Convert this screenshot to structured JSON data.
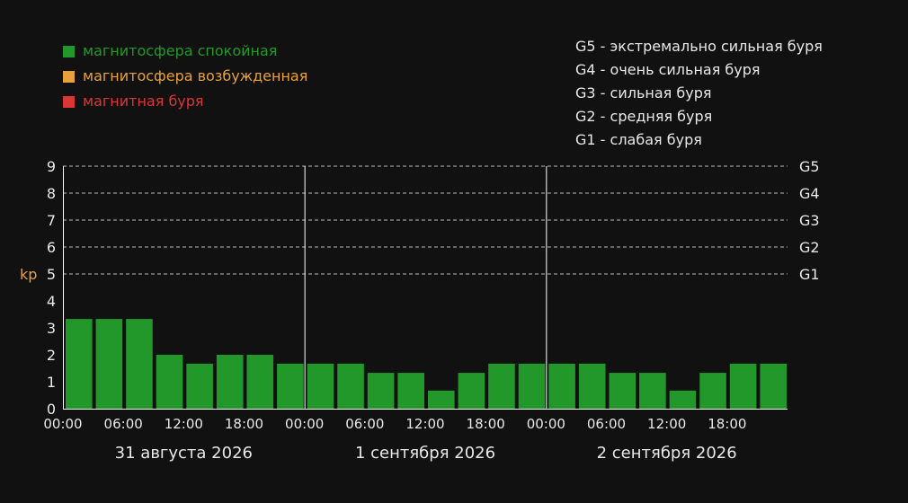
{
  "legend": [
    {
      "label": "магнитосфера спокойная",
      "color": "#23982a"
    },
    {
      "label": "магнитосфера возбужденная",
      "color": "#e8a13a"
    },
    {
      "label": "магнитная буря",
      "color": "#d93636"
    }
  ],
  "storm_levels": [
    {
      "text": "G5 - экстремально сильная буря"
    },
    {
      "text": "G4 - очень сильная буря"
    },
    {
      "text": "G3 - сильная буря"
    },
    {
      "text": "G2 - средняя буря"
    },
    {
      "text": "G1 - слабая буря"
    }
  ],
  "colors": {
    "background": "#111111",
    "calm": "#23982a",
    "axis": "#ffffff",
    "grid": "#bbbbbb",
    "ylabel": "#e8a13a",
    "text": "#e8e8e8"
  },
  "chart_data": {
    "type": "bar",
    "ylabel": "kp",
    "ylim": [
      0,
      9
    ],
    "yticks": [
      "0",
      "1",
      "2",
      "3",
      "4",
      "5",
      "6",
      "7",
      "8",
      "9"
    ],
    "right_ticks": [
      {
        "value": 9,
        "label": "G5"
      },
      {
        "value": 8,
        "label": "G4"
      },
      {
        "value": 7,
        "label": "G3"
      },
      {
        "value": 6,
        "label": "G2"
      },
      {
        "value": 5,
        "label": "G1"
      }
    ],
    "gridlines": [
      5,
      6,
      7,
      8,
      9
    ],
    "days": [
      "31 августа 2026",
      "1 сентября 2026",
      "2 сентября 2026"
    ],
    "time_ticks": [
      "00:00",
      "06:00",
      "12:00",
      "18:00"
    ],
    "values": [
      3.33,
      3.33,
      3.33,
      2,
      1.67,
      2,
      2,
      1.67,
      1.67,
      1.67,
      1.33,
      1.33,
      0.67,
      1.33,
      1.67,
      1.67,
      1.67,
      1.67,
      1.33,
      1.33,
      0.67,
      1.33,
      1.67,
      1.67
    ]
  }
}
